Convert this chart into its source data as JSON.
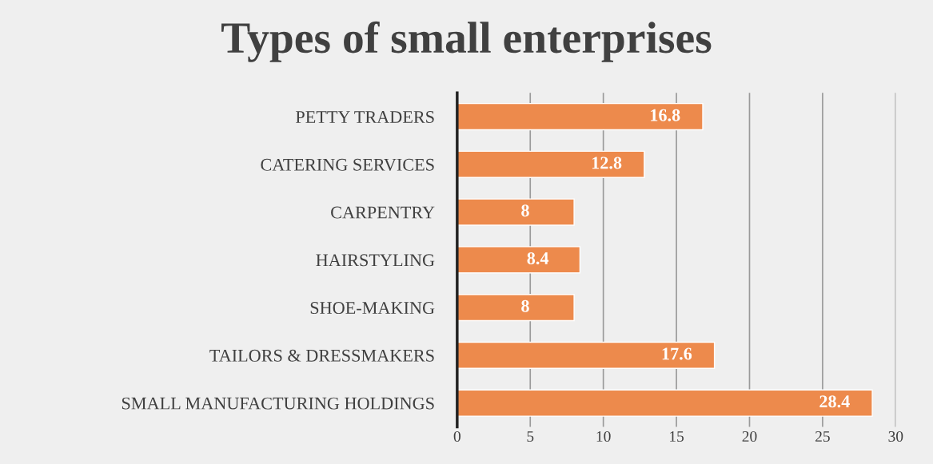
{
  "chart_data": {
    "type": "bar",
    "orientation": "horizontal",
    "title": "Types of small enterprises",
    "categories": [
      "PETTY TRADERS",
      "CATERING SERVICES",
      "CARPENTRY",
      "HAIRSTYLING",
      "SHOE-MAKING",
      "TAILORS & DRESSMAKERS",
      "SMALL MANUFACTURING HOLDINGS"
    ],
    "values": [
      16.8,
      12.8,
      8,
      8.4,
      8,
      17.6,
      28.4
    ],
    "color": "#ed8a4c",
    "xlim": [
      0,
      30
    ],
    "xticks": [
      0,
      5,
      10,
      15,
      20,
      25,
      30
    ],
    "grid": "x",
    "data_labels": true,
    "legend": false
  }
}
